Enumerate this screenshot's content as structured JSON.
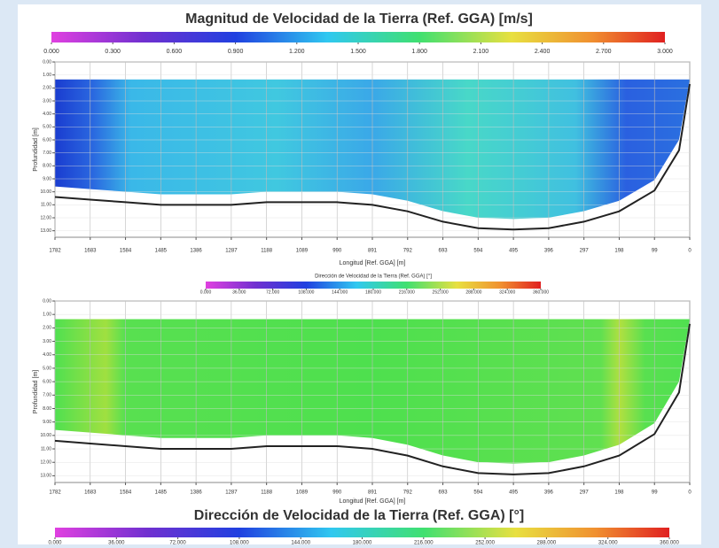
{
  "chart_data": [
    {
      "type": "contour",
      "title": "Magnitud de Velocidad de la Tierra (Ref. GGA) [m/s]",
      "x_label": "Longitud [Ref. GGA] [m]",
      "y_label": "Profundidad [m]",
      "clim": [
        0,
        3
      ],
      "colorbar_ticks": [
        {
          "value": 0,
          "label": "0.000"
        },
        {
          "value": 0.3,
          "label": "0.300"
        },
        {
          "value": 0.6,
          "label": "0.600"
        },
        {
          "value": 0.9,
          "label": "0.900"
        },
        {
          "value": 1.2,
          "label": "1.200"
        },
        {
          "value": 1.5,
          "label": "1.500"
        },
        {
          "value": 1.8,
          "label": "1.800"
        },
        {
          "value": 2.1,
          "label": "2.100"
        },
        {
          "value": 2.4,
          "label": "2.400"
        },
        {
          "value": 2.7,
          "label": "2.700"
        },
        {
          "value": 3,
          "label": "3.000"
        }
      ],
      "xlim": [
        1782,
        0
      ],
      "xticks": [
        1782,
        1683,
        1584,
        1485,
        1386,
        1287,
        1188,
        1089,
        990,
        891,
        792,
        693,
        594,
        495,
        396,
        297,
        198,
        99,
        0
      ],
      "ylim": [
        0,
        13.5
      ],
      "yticks": [
        {
          "value": 0,
          "label": "0.00"
        },
        {
          "value": 1,
          "label": "1.00"
        },
        {
          "value": 2,
          "label": "2.00"
        },
        {
          "value": 3,
          "label": "3.00"
        },
        {
          "value": 4,
          "label": "4.00"
        },
        {
          "value": 5,
          "label": "5.00"
        },
        {
          "value": 6,
          "label": "6.00"
        },
        {
          "value": 7,
          "label": "7.00"
        },
        {
          "value": 8,
          "label": "8.00"
        },
        {
          "value": 9,
          "label": "9.00"
        },
        {
          "value": 10,
          "label": "10.00"
        },
        {
          "value": 11,
          "label": "11.00"
        },
        {
          "value": 12,
          "label": "12.00"
        },
        {
          "value": 13,
          "label": "13.00"
        }
      ],
      "x": [
        1782,
        1683,
        1584,
        1485,
        1386,
        1287,
        1188,
        1089,
        990,
        891,
        792,
        693,
        594,
        495,
        396,
        297,
        198,
        99,
        30,
        0
      ],
      "values": [
        10.4,
        10.6,
        10.8,
        11.0,
        11.0,
        11.0,
        10.8,
        10.8,
        10.8,
        11.0,
        11.5,
        12.3,
        12.8,
        12.9,
        12.8,
        12.3,
        11.5,
        9.9,
        6.8,
        1.7
      ],
      "color": "#222222",
      "grid": true
    },
    {
      "type": "contour",
      "title": "Dirección de Velocidad de la Tierra (Ref. GGA) [°]",
      "x_label": "Longitud [Ref. GGA] [m]",
      "y_label": "Profundidad [m]",
      "clim": [
        0,
        360
      ],
      "colorbar_ticks": [
        {
          "value": 0,
          "label": "0.000"
        },
        {
          "value": 36,
          "label": "36.000"
        },
        {
          "value": 72,
          "label": "72.000"
        },
        {
          "value": 108,
          "label": "108.000"
        },
        {
          "value": 144,
          "label": "144.000"
        },
        {
          "value": 180,
          "label": "180.000"
        },
        {
          "value": 216,
          "label": "216.000"
        },
        {
          "value": 252,
          "label": "252.000"
        },
        {
          "value": 288,
          "label": "288.000"
        },
        {
          "value": 324,
          "label": "324.000"
        },
        {
          "value": 360,
          "label": "360.000"
        }
      ],
      "xlim": [
        1782,
        0
      ],
      "xticks": [
        1782,
        1683,
        1584,
        1485,
        1386,
        1287,
        1188,
        1089,
        990,
        891,
        792,
        693,
        594,
        495,
        396,
        297,
        198,
        99,
        0
      ],
      "ylim": [
        0,
        13.5
      ],
      "yticks": [
        {
          "value": 0,
          "label": "0.00"
        },
        {
          "value": 1,
          "label": "1.00"
        },
        {
          "value": 2,
          "label": "2.00"
        },
        {
          "value": 3,
          "label": "3.00"
        },
        {
          "value": 4,
          "label": "4.00"
        },
        {
          "value": 5,
          "label": "5.00"
        },
        {
          "value": 6,
          "label": "6.00"
        },
        {
          "value": 7,
          "label": "7.00"
        },
        {
          "value": 8,
          "label": "8.00"
        },
        {
          "value": 9,
          "label": "9.00"
        },
        {
          "value": 10,
          "label": "10.00"
        },
        {
          "value": 11,
          "label": "11.00"
        },
        {
          "value": 12,
          "label": "12.00"
        },
        {
          "value": 13,
          "label": "13.00"
        }
      ],
      "x": [
        1782,
        1683,
        1584,
        1485,
        1386,
        1287,
        1188,
        1089,
        990,
        891,
        792,
        693,
        594,
        495,
        396,
        297,
        198,
        99,
        30,
        0
      ],
      "values": [
        10.4,
        10.6,
        10.8,
        11.0,
        11.0,
        11.0,
        10.8,
        10.8,
        10.8,
        11.0,
        11.5,
        12.3,
        12.8,
        12.9,
        12.8,
        12.3,
        11.5,
        9.9,
        6.8,
        1.7
      ],
      "color": "#222222",
      "grid": true
    }
  ]
}
